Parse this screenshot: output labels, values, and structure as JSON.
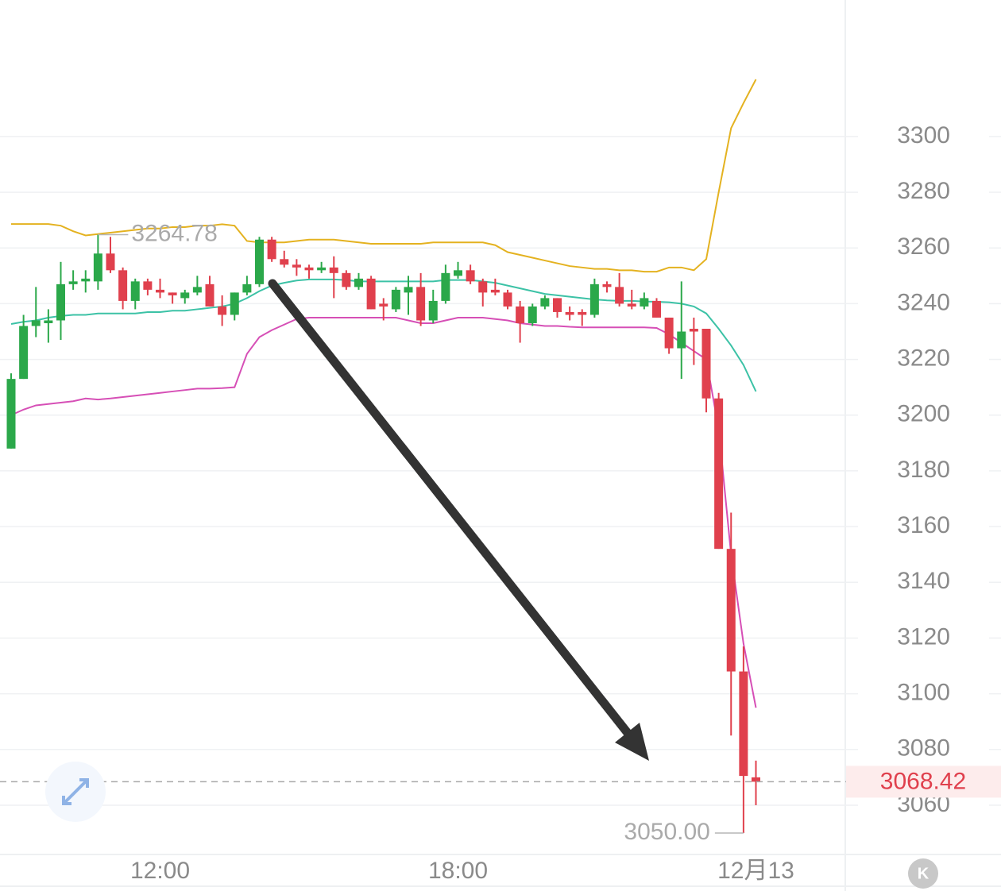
{
  "chart_data": {
    "type": "candlestick",
    "categories": [
      null,
      null,
      null,
      null,
      null,
      null,
      null,
      null,
      null,
      null,
      null,
      null,
      "12:00",
      null,
      null,
      null,
      null,
      null,
      null,
      null,
      null,
      null,
      null,
      null,
      null,
      null,
      null,
      null,
      null,
      null,
      null,
      null,
      null,
      null,
      null,
      null,
      "18:00",
      null,
      null,
      null,
      null,
      null,
      null,
      null,
      null,
      null,
      null,
      null,
      null,
      null,
      null,
      null,
      null,
      null,
      null,
      null,
      null,
      null,
      null,
      null,
      "12月13"
    ],
    "open": [
      3188,
      3213,
      3232,
      3233,
      3234,
      3247,
      3248,
      3248,
      3258,
      3252,
      3241,
      3248,
      3245,
      3244,
      3242,
      3244,
      3247,
      3239,
      3236,
      3244,
      3247,
      3263,
      3256,
      3254,
      3253,
      3252,
      3253,
      3251,
      3246,
      3249,
      3240,
      3238,
      3244,
      3246,
      3234,
      3241,
      3250,
      3252,
      3248,
      3245,
      3244,
      3239,
      3233,
      3239,
      3242,
      3237,
      3237,
      3236,
      3247,
      3246,
      3240,
      3239,
      3241,
      3235,
      3224,
      3231,
      3231,
      3206,
      3152,
      3108,
      3070
    ],
    "high": [
      3215,
      3236,
      3246,
      3238,
      3255,
      3252,
      3252,
      3264.78,
      3264,
      3253,
      3249,
      3249,
      3249,
      3244,
      3245,
      3250,
      3250,
      3243,
      3244,
      3250,
      3264,
      3264,
      3259,
      3256,
      3254,
      3255,
      3257,
      3252,
      3251,
      3250,
      3242,
      3246,
      3250,
      3251,
      3245,
      3254,
      3255,
      3254,
      3249,
      3249,
      3245,
      3241,
      3240,
      3243,
      3242,
      3239,
      3238,
      3249,
      3248,
      3251,
      3245,
      3244,
      3242,
      3235,
      3248,
      3235,
      3231,
      3208,
      3165,
      3117,
      3076
    ],
    "low": [
      3188,
      3213,
      3228,
      3226,
      3227,
      3245,
      3244,
      3245,
      3251,
      3238,
      3238,
      3243,
      3242,
      3240,
      3240,
      3243,
      3239,
      3232,
      3234,
      3243,
      3246,
      3255,
      3253,
      3250,
      3249,
      3251,
      3242,
      3245,
      3245,
      3238,
      3234,
      3237,
      3236,
      3232,
      3233,
      3240,
      3249,
      3247,
      3239,
      3243,
      3238,
      3226,
      3232,
      3238,
      3235,
      3234,
      3232,
      3235,
      3244,
      3239,
      3238,
      3238,
      3235,
      3222,
      3213,
      3218,
      3201,
      3152,
      3085,
      3050,
      3060
    ],
    "close": [
      3213,
      3232,
      3234,
      3234,
      3247,
      3248,
      3249,
      3258,
      3252,
      3241,
      3248,
      3245,
      3244,
      3243,
      3244,
      3246,
      3239,
      3236,
      3244,
      3247,
      3263,
      3256,
      3254,
      3253,
      3252,
      3253,
      3251,
      3246,
      3249,
      3238,
      3239,
      3245,
      3246,
      3234,
      3241,
      3251,
      3252,
      3248,
      3244,
      3244,
      3239,
      3233,
      3239,
      3242,
      3237,
      3236,
      3236,
      3247,
      3246,
      3240,
      3239,
      3242,
      3235,
      3224,
      3230,
      3230,
      3206,
      3152,
      3108,
      3070.5,
      3068.42
    ],
    "up_color": "#2ba84a",
    "down_color": "#e0404d",
    "bands": {
      "upper": {
        "color": "#e4b220",
        "values": [
          3268.6,
          3268.6,
          3268.6,
          3268.6,
          3268,
          3266,
          3264.5,
          3265,
          3265.5,
          3266,
          3266.5,
          3267,
          3267,
          3267.5,
          3267.5,
          3268,
          3268,
          3268.5,
          3268,
          3262.5,
          3262,
          3262,
          3262,
          3262.5,
          3263,
          3263,
          3263,
          3262.5,
          3262,
          3261.5,
          3261.5,
          3261.5,
          3261.5,
          3261.5,
          3262,
          3262,
          3262,
          3262,
          3262,
          3261,
          3258.5,
          3257.5,
          3256.5,
          3255.5,
          3254.5,
          3253.5,
          3253,
          3252.5,
          3252.5,
          3252,
          3252,
          3251.5,
          3251.5,
          3253,
          3253,
          3252,
          3256,
          3280,
          3303,
          3312,
          3320.5
        ]
      },
      "middle": {
        "color": "#3cc2a6",
        "values": [
          3232.7,
          3233.5,
          3234,
          3235,
          3235.6,
          3236,
          3236,
          3236.5,
          3236.5,
          3236.5,
          3236.5,
          3237,
          3237,
          3237.5,
          3237.5,
          3238,
          3238.5,
          3239,
          3240,
          3242,
          3244.5,
          3246.5,
          3247.5,
          3248.3,
          3248.7,
          3248.7,
          3248.7,
          3248.5,
          3248,
          3248,
          3248,
          3248,
          3248,
          3248,
          3248,
          3248.5,
          3248.5,
          3248.5,
          3248,
          3247.5,
          3246.5,
          3245.5,
          3244.5,
          3243.5,
          3243,
          3242.5,
          3242,
          3241.5,
          3241.2,
          3241,
          3241,
          3240.8,
          3240.7,
          3240.5,
          3240,
          3239,
          3236.5,
          3231,
          3225,
          3218,
          3208.5
        ]
      },
      "lower": {
        "color": "#d64fb6",
        "values": [
          3200,
          3202,
          3203.5,
          3204,
          3204.5,
          3205,
          3206,
          3205.6,
          3206,
          3206.5,
          3207,
          3207.5,
          3208,
          3208.5,
          3209,
          3209.5,
          3209.5,
          3209.7,
          3210,
          3222,
          3228,
          3230.5,
          3232.5,
          3234.5,
          3235,
          3235,
          3235,
          3235,
          3235,
          3235,
          3235,
          3235,
          3234,
          3233,
          3233,
          3234,
          3235,
          3235,
          3235,
          3234.5,
          3234,
          3233,
          3232.5,
          3232,
          3232,
          3231.7,
          3231.5,
          3231.5,
          3231.5,
          3231.5,
          3231.5,
          3231.5,
          3231.3,
          3229,
          3226,
          3223,
          3220,
          3195,
          3150,
          3118,
          3095
        ]
      }
    },
    "ylim": [
      3042.6,
      3349
    ],
    "yticks": [
      3060,
      3080,
      3100,
      3120,
      3140,
      3160,
      3180,
      3200,
      3220,
      3240,
      3260,
      3280,
      3300
    ],
    "grid": true,
    "high_marker": {
      "value": 3264.78,
      "label": "3264.78"
    },
    "low_marker": {
      "value": 3050,
      "label": "3050.00"
    },
    "last_price": {
      "value": 3068.42,
      "label": "3068.42",
      "color": "#e0404d"
    }
  },
  "kline_button": "K"
}
